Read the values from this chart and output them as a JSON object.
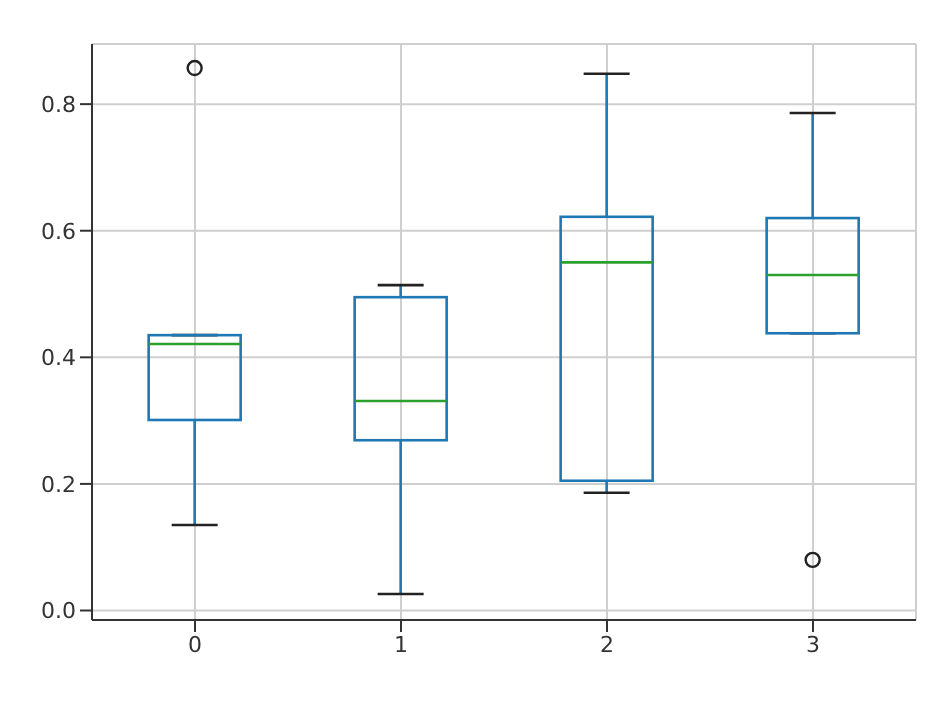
{
  "chart_data": {
    "type": "box",
    "categories": [
      "0",
      "1",
      "2",
      "3"
    ],
    "boxes": [
      {
        "low": 0.135,
        "q1": 0.301,
        "median": 0.421,
        "q3": 0.435,
        "high": 0.435,
        "outliers": [
          0.857
        ]
      },
      {
        "low": 0.026,
        "q1": 0.269,
        "median": 0.331,
        "q3": 0.495,
        "high": 0.514
      },
      {
        "low": 0.186,
        "q1": 0.205,
        "median": 0.55,
        "q3": 0.622,
        "high": 0.848
      },
      {
        "low": 0.438,
        "q1": 0.438,
        "median": 0.53,
        "q3": 0.62,
        "high": 0.786,
        "outliers": [
          0.08
        ]
      }
    ],
    "color": "#1f77b4",
    "ylim": [
      -0.015,
      0.895
    ],
    "yticks": [
      {
        "value": 0,
        "label": "0.0"
      },
      0.2,
      0.4,
      0.6,
      0.8
    ],
    "grid": true
  }
}
